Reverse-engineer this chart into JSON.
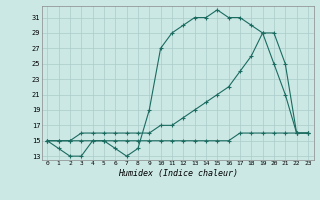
{
  "xlabel": "Humidex (Indice chaleur)",
  "bg_color": "#cce8e5",
  "grid_color": "#aaccca",
  "line_color": "#1a6b60",
  "xlim": [
    -0.5,
    23.5
  ],
  "ylim": [
    12.5,
    32.5
  ],
  "yticks": [
    13,
    15,
    17,
    19,
    21,
    23,
    25,
    27,
    29,
    31
  ],
  "xticks": [
    0,
    1,
    2,
    3,
    4,
    5,
    6,
    7,
    8,
    9,
    10,
    11,
    12,
    13,
    14,
    15,
    16,
    17,
    18,
    19,
    20,
    21,
    22,
    23
  ],
  "line1_x": [
    0,
    1,
    2,
    3,
    4,
    5,
    6,
    7,
    8,
    9,
    10,
    11,
    12,
    13,
    14,
    15,
    16,
    17,
    18,
    19,
    20,
    21,
    22,
    23
  ],
  "line1_y": [
    15,
    14,
    13,
    13,
    15,
    15,
    14,
    13,
    14,
    19,
    27,
    29,
    30,
    31,
    31,
    32,
    31,
    31,
    30,
    29,
    25,
    21,
    16,
    16
  ],
  "line2_x": [
    0,
    1,
    2,
    3,
    4,
    5,
    6,
    7,
    8,
    9,
    10,
    11,
    12,
    13,
    14,
    15,
    16,
    17,
    18,
    19,
    20,
    21,
    22,
    23
  ],
  "line2_y": [
    15,
    15,
    15,
    16,
    16,
    16,
    16,
    16,
    16,
    16,
    17,
    17,
    18,
    19,
    20,
    21,
    22,
    24,
    26,
    29,
    29,
    25,
    16,
    16
  ],
  "line3_x": [
    0,
    1,
    2,
    3,
    4,
    5,
    6,
    7,
    8,
    9,
    10,
    11,
    12,
    13,
    14,
    15,
    16,
    17,
    18,
    19,
    20,
    21,
    22,
    23
  ],
  "line3_y": [
    15,
    15,
    15,
    15,
    15,
    15,
    15,
    15,
    15,
    15,
    15,
    15,
    15,
    15,
    15,
    15,
    15,
    16,
    16,
    16,
    16,
    16,
    16,
    16
  ]
}
